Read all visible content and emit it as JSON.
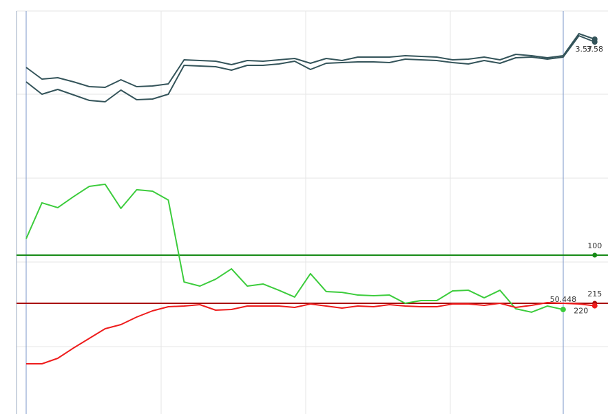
{
  "chart_data": [
    {
      "type": "line",
      "x": [
        0,
        1,
        2,
        3,
        4,
        5,
        6,
        7,
        8,
        9,
        10,
        11,
        12,
        13,
        14,
        15,
        16,
        17,
        18,
        19,
        20,
        21,
        22,
        23,
        24,
        25,
        26,
        27,
        28,
        29,
        30,
        31,
        32,
        33,
        34,
        35,
        36
      ],
      "xlim": [
        -0.61,
        36.84
      ],
      "ylim": [
        3.176,
        3.662
      ],
      "series": [
        {
          "color": "#34545a",
          "values": [
            3.498,
            3.464,
            3.468,
            3.456,
            3.442,
            3.44,
            3.462,
            3.442,
            3.444,
            3.45,
            3.52,
            3.518,
            3.516,
            3.506,
            3.518,
            3.516,
            3.52,
            3.524,
            3.51,
            3.524,
            3.518,
            3.528,
            3.528,
            3.528,
            3.532,
            3.53,
            3.528,
            3.52,
            3.522,
            3.528,
            3.52,
            3.536,
            3.532,
            3.526,
            3.532,
            3.596,
            3.58
          ],
          "value_labels": [
            null,
            null,
            null,
            null,
            null,
            null,
            null,
            null,
            null,
            null,
            null,
            null,
            null,
            null,
            null,
            null,
            null,
            null,
            null,
            null,
            null,
            null,
            null,
            null,
            null,
            null,
            null,
            null,
            null,
            null,
            null,
            null,
            null,
            null,
            null,
            null,
            "3.58"
          ]
        },
        {
          "color": "#34545a",
          "values": [
            3.456,
            3.42,
            3.434,
            3.418,
            3.402,
            3.398,
            3.432,
            3.404,
            3.406,
            3.42,
            3.504,
            3.502,
            3.5,
            3.49,
            3.504,
            3.504,
            3.508,
            3.516,
            3.492,
            3.51,
            3.512,
            3.514,
            3.514,
            3.512,
            3.522,
            3.52,
            3.518,
            3.512,
            3.508,
            3.518,
            3.51,
            3.526,
            3.528,
            3.522,
            3.528,
            3.59,
            3.572
          ],
          "value_labels": [
            null,
            null,
            null,
            null,
            null,
            null,
            null,
            null,
            null,
            null,
            null,
            null,
            null,
            null,
            null,
            null,
            null,
            null,
            null,
            null,
            null,
            null,
            null,
            null,
            null,
            null,
            null,
            null,
            null,
            null,
            null,
            null,
            null,
            null,
            null,
            null,
            "3.57"
          ]
        }
      ]
    },
    {
      "type": "line",
      "x": [
        0,
        1,
        2,
        3,
        4,
        5,
        6,
        7,
        8,
        9,
        10,
        11,
        12,
        13,
        14,
        15,
        16,
        17,
        18,
        19,
        20,
        21,
        22,
        23,
        24,
        25,
        26,
        27,
        28,
        29,
        30,
        31,
        32,
        33,
        34,
        35,
        36
      ],
      "xlim": [
        -0.61,
        36.84
      ],
      "ylim": [
        -44.8,
        170.2
      ],
      "y2lim": [
        -39.8,
        440.4
      ],
      "y2_inverted": true,
      "series": [
        {
          "color": "#3ccc3c",
          "axis": "y",
          "values": [
            115.0,
            147.7,
            143.3,
            153.3,
            162.7,
            164.6,
            142.6,
            159.6,
            158.3,
            150.2,
            75.5,
            71.8,
            78.1,
            87.5,
            71.8,
            73.7,
            68.0,
            61.8,
            83.1,
            66.8,
            66.1,
            63.6,
            63.0,
            63.6,
            56.1,
            58.6,
            58.6,
            67.4,
            68.0,
            61.1,
            68.0,
            51.1,
            48.0,
            53.6,
            50.448,
            null,
            null
          ],
          "value_labels": [
            null,
            null,
            null,
            null,
            null,
            null,
            null,
            null,
            null,
            null,
            null,
            null,
            null,
            null,
            null,
            null,
            null,
            null,
            null,
            null,
            null,
            null,
            null,
            null,
            null,
            null,
            null,
            null,
            null,
            null,
            null,
            null,
            null,
            null,
            "50.448",
            null,
            null
          ]
        },
        {
          "color": "#ee1c1c",
          "axis": "y2",
          "values": [
            338.2,
            338.2,
            327,
            306,
            286.4,
            266.8,
            258.4,
            243,
            230.4,
            222,
            220.6,
            217.8,
            229,
            227.6,
            220.6,
            220.6,
            220.6,
            223.4,
            216.4,
            220.6,
            224.8,
            220.6,
            222,
            217.8,
            220.6,
            222,
            222,
            216.4,
            216.4,
            219.2,
            215,
            223.4,
            219.2,
            213.6,
            215,
            216.4,
            220
          ],
          "value_labels": [
            null,
            null,
            null,
            null,
            null,
            null,
            null,
            null,
            null,
            null,
            null,
            null,
            null,
            null,
            null,
            null,
            null,
            null,
            null,
            null,
            null,
            null,
            null,
            null,
            null,
            null,
            null,
            null,
            null,
            null,
            null,
            null,
            null,
            null,
            null,
            null,
            "220"
          ]
        }
      ],
      "hlines": [
        {
          "value": 100,
          "color": "#168a16",
          "axis": "y"
        },
        {
          "value": 215,
          "color": "#a80808",
          "axis": "y2"
        }
      ]
    }
  ]
}
